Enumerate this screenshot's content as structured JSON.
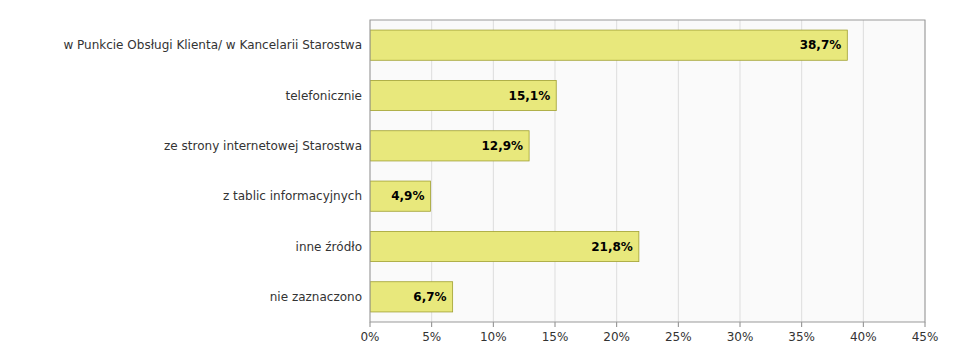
{
  "chart_data": {
    "type": "bar",
    "orientation": "horizontal",
    "categories": [
      "w Punkcie Obsługi Klienta/ w Kancelarii Starostwa",
      "telefonicznie",
      "ze strony internetowej Starostwa",
      "z tablic informacyjnych",
      "inne źródło",
      "nie zaznaczono"
    ],
    "values": [
      38.7,
      15.1,
      12.9,
      4.9,
      21.8,
      6.7
    ],
    "value_labels": [
      "38,7%",
      "15,1%",
      "12,9%",
      "4,9%",
      "21,8%",
      "6,7%"
    ],
    "color": "#e8e87c",
    "xlim": [
      0,
      45
    ],
    "xticks": [
      {
        "value": 0,
        "label": "0%"
      },
      {
        "value": 5,
        "label": "5%"
      },
      {
        "value": 10,
        "label": "10%"
      },
      {
        "value": 15,
        "label": "15%"
      },
      {
        "value": 20,
        "label": "20%"
      },
      {
        "value": 25,
        "label": "25%"
      },
      {
        "value": 30,
        "label": "30%"
      },
      {
        "value": 35,
        "label": "35%"
      },
      {
        "value": 40,
        "label": "40%"
      },
      {
        "value": 45,
        "label": "45%"
      }
    ],
    "grid": true,
    "data_labels": true
  }
}
